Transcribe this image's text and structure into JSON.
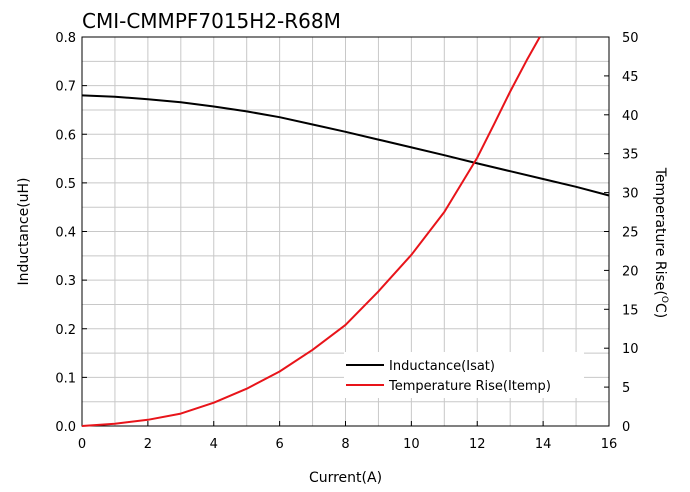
{
  "chart_data": {
    "type": "line",
    "title": "CMI-CMMPF7015H2-R68M",
    "xlabel": "Current(A)",
    "ylabel": "Inductance(uH)",
    "y2label_parts": [
      "Temperature Rise(",
      "O",
      "C)"
    ],
    "xlim": [
      0,
      16
    ],
    "ylim": [
      0,
      0.8
    ],
    "y2lim": [
      0,
      50
    ],
    "xticks": [
      "0",
      "2",
      "4",
      "6",
      "8",
      "10",
      "12",
      "14",
      "16"
    ],
    "yticks": [
      "0.0",
      "0.1",
      "0.2",
      "0.3",
      "0.4",
      "0.5",
      "0.6",
      "0.7",
      "0.8"
    ],
    "y2ticks": [
      "0",
      "5",
      "10",
      "15",
      "20",
      "25",
      "30",
      "35",
      "40",
      "45",
      "50"
    ],
    "grid": true,
    "legend_position": "bottom-right",
    "series": [
      {
        "name": "Inductance(Isat)",
        "axis": "left",
        "color": "#000000",
        "x": [
          0,
          1,
          2,
          3,
          4,
          5,
          6,
          7,
          8,
          9,
          10,
          11,
          12,
          13,
          14,
          15,
          16
        ],
        "y": [
          0.68,
          0.677,
          0.672,
          0.666,
          0.657,
          0.647,
          0.635,
          0.62,
          0.605,
          0.589,
          0.573,
          0.557,
          0.54,
          0.524,
          0.508,
          0.492,
          0.474
        ]
      },
      {
        "name": "Temperature Rise(Itemp)",
        "axis": "right",
        "color": "#e8141a",
        "x": [
          0,
          1,
          2,
          3,
          4,
          5,
          6,
          7,
          8,
          9,
          10,
          11,
          12,
          12.5,
          13,
          13.5,
          13.9
        ],
        "y": [
          0,
          0.3,
          0.8,
          1.6,
          3.0,
          4.8,
          7.0,
          9.8,
          13.0,
          17.3,
          22.0,
          27.5,
          34.5,
          38.7,
          43.0,
          47.0,
          50
        ]
      }
    ]
  }
}
